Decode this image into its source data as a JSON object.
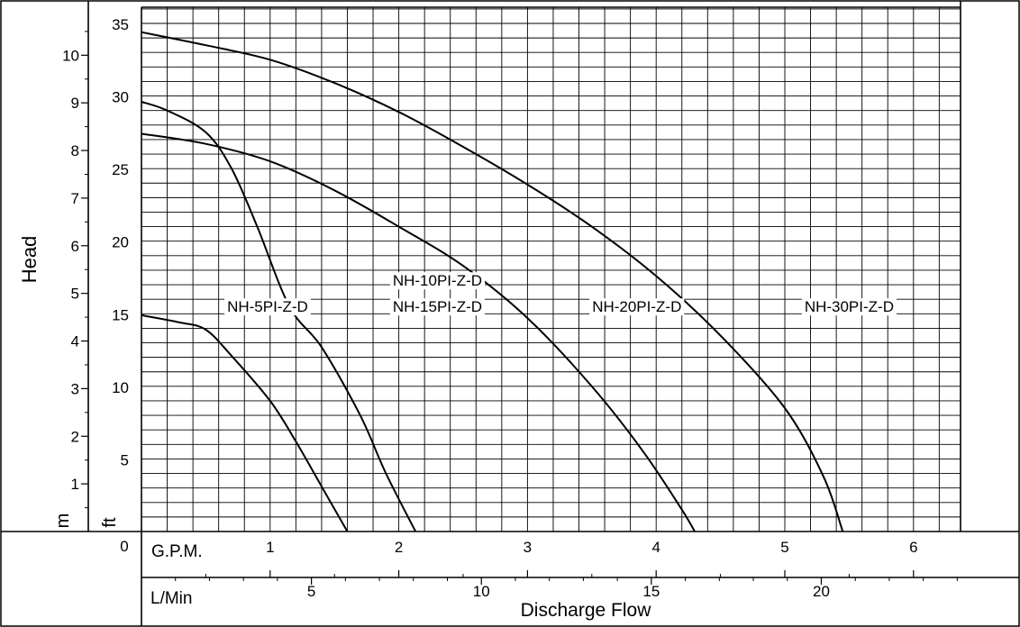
{
  "chart_data": {
    "type": "line",
    "ylabel": "Head",
    "xlabel": "Discharge Flow",
    "units": {
      "m": "m",
      "ft": "ft",
      "gpm": "G.P.M.",
      "lmin": "L/Min"
    },
    "x_gpm": {
      "ticks": [
        0,
        1,
        2,
        3,
        4,
        5,
        6
      ],
      "range": [
        0,
        6.4
      ]
    },
    "x_lmin": {
      "ticks": [
        5,
        10,
        15,
        20
      ]
    },
    "y_ft": {
      "ticks": [
        5,
        10,
        15,
        20,
        25,
        30,
        35
      ],
      "range": [
        0,
        36
      ]
    },
    "y_m": {
      "ticks": [
        1,
        2,
        3,
        4,
        5,
        6,
        7,
        8,
        9,
        10
      ]
    },
    "grid": true,
    "series": [
      {
        "name": "NH-5PI-Z-D",
        "x": [
          0,
          0.3,
          0.5,
          0.7,
          1.0,
          1.2,
          1.4,
          1.6
        ],
        "y": [
          14.9,
          14.4,
          13.9,
          12.1,
          9.0,
          6.2,
          3.1,
          0
        ]
      },
      {
        "name": "NH-10PI-Z-D NH-15PI-Z-D",
        "x": [
          0,
          0.2,
          0.5,
          0.7,
          0.9,
          1.15,
          1.4,
          1.7,
          1.9,
          2.13
        ],
        "y": [
          29.6,
          29.0,
          27.5,
          25.0,
          21.0,
          15.5,
          12.7,
          8.0,
          4.0,
          0
        ]
      },
      {
        "name": "NH-20PI-Z-D",
        "x": [
          0,
          0.5,
          1.0,
          1.5,
          2.0,
          2.5,
          3.0,
          3.5,
          3.9,
          4.2,
          4.3
        ],
        "y": [
          27.4,
          26.7,
          25.5,
          23.5,
          21.0,
          18.3,
          14.7,
          10.0,
          5.5,
          1.5,
          0
        ]
      },
      {
        "name": "NH-30PI-Z-D",
        "x": [
          0,
          0.5,
          1.0,
          1.5,
          2.0,
          2.5,
          3.0,
          3.5,
          4.0,
          4.5,
          5.0,
          5.3,
          5.45
        ],
        "y": [
          34.4,
          33.5,
          32.5,
          30.9,
          28.9,
          26.5,
          23.9,
          21.0,
          17.6,
          13.5,
          8.5,
          3.8,
          0
        ]
      }
    ],
    "annotations": [
      {
        "text": "NH-5PI-Z-D",
        "gpm": 0.98,
        "ft": 15.5
      },
      {
        "text": "NH-10PI-Z-D",
        "gpm": 2.3,
        "ft": 17.3
      },
      {
        "text": "NH-15PI-Z-D",
        "gpm": 2.3,
        "ft": 15.5
      },
      {
        "text": "NH-20PI-Z-D",
        "gpm": 3.85,
        "ft": 15.5
      },
      {
        "text": "NH-30PI-Z-D",
        "gpm": 5.5,
        "ft": 15.5
      }
    ]
  }
}
